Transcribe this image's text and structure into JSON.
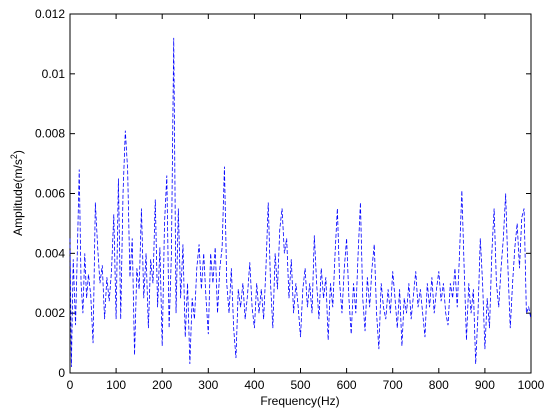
{
  "chart_data": {
    "type": "line",
    "xlabel": "Frequency(Hz)",
    "ylabel_parts": [
      "Amplitude(m/s",
      "2",
      ")"
    ],
    "xlim": [
      0,
      1000
    ],
    "xticks": [
      0,
      100,
      200,
      300,
      400,
      500,
      600,
      700,
      800,
      900,
      1000
    ],
    "ylim": [
      0,
      0.012
    ],
    "yticks": [
      0,
      0.002,
      0.004,
      0.006,
      0.008,
      0.01,
      0.012
    ],
    "grid": false,
    "series": [
      {
        "color": "#0000ff",
        "linestyle": "dashed",
        "x": [
          0,
          3,
          7,
          12,
          16,
          20,
          24,
          28,
          32,
          36,
          40,
          45,
          50,
          55,
          60,
          65,
          70,
          75,
          80,
          85,
          90,
          95,
          100,
          105,
          110,
          115,
          120,
          125,
          130,
          135,
          140,
          145,
          150,
          155,
          160,
          165,
          170,
          175,
          180,
          185,
          190,
          195,
          200,
          205,
          210,
          215,
          220,
          225,
          230,
          235,
          240,
          245,
          250,
          255,
          260,
          265,
          270,
          275,
          280,
          285,
          290,
          295,
          300,
          305,
          310,
          315,
          320,
          325,
          330,
          335,
          340,
          345,
          350,
          355,
          360,
          365,
          370,
          375,
          380,
          385,
          390,
          395,
          400,
          405,
          410,
          415,
          420,
          425,
          430,
          435,
          440,
          445,
          450,
          455,
          460,
          465,
          470,
          475,
          480,
          485,
          490,
          495,
          500,
          505,
          510,
          515,
          520,
          525,
          530,
          535,
          540,
          545,
          550,
          555,
          560,
          565,
          570,
          575,
          580,
          585,
          590,
          595,
          600,
          605,
          610,
          615,
          620,
          625,
          630,
          635,
          640,
          645,
          650,
          655,
          660,
          665,
          670,
          675,
          680,
          685,
          690,
          695,
          700,
          705,
          710,
          715,
          720,
          725,
          730,
          735,
          740,
          745,
          750,
          755,
          760,
          765,
          770,
          775,
          780,
          785,
          790,
          795,
          800,
          805,
          810,
          815,
          820,
          825,
          830,
          835,
          840,
          845,
          850,
          855,
          860,
          865,
          870,
          875,
          880,
          885,
          890,
          895,
          900,
          905,
          910,
          915,
          920,
          925,
          930,
          935,
          940,
          945,
          950,
          955,
          960,
          965,
          970,
          975,
          980,
          985,
          990,
          995,
          1000
        ],
        "values": [
          0.0045,
          0.0002,
          0.0038,
          0.0016,
          0.0041,
          0.0068,
          0.003,
          0.002,
          0.004,
          0.0025,
          0.0033,
          0.0026,
          0.001,
          0.0057,
          0.0042,
          0.003,
          0.0036,
          0.0018,
          0.0032,
          0.0024,
          0.0034,
          0.0053,
          0.0018,
          0.0065,
          0.0018,
          0.006,
          0.0081,
          0.0068,
          0.0032,
          0.0045,
          0.0006,
          0.0035,
          0.0028,
          0.0055,
          0.0025,
          0.004,
          0.0015,
          0.0038,
          0.003,
          0.0058,
          0.0022,
          0.0042,
          0.0009,
          0.005,
          0.0066,
          0.0015,
          0.004,
          0.0112,
          0.002,
          0.0055,
          0.0025,
          0.0043,
          0.0012,
          0.003,
          0.0003,
          0.0025,
          0.0018,
          0.0035,
          0.0043,
          0.0028,
          0.004,
          0.0025,
          0.0013,
          0.004,
          0.003,
          0.0042,
          0.002,
          0.0035,
          0.0042,
          0.0069,
          0.003,
          0.002,
          0.0035,
          0.0015,
          0.0005,
          0.0028,
          0.0022,
          0.003,
          0.0018,
          0.0026,
          0.0037,
          0.0022,
          0.0015,
          0.003,
          0.002,
          0.0028,
          0.0018,
          0.0035,
          0.0057,
          0.003,
          0.0015,
          0.004,
          0.0028,
          0.0048,
          0.0055,
          0.004,
          0.0045,
          0.0025,
          0.0038,
          0.002,
          0.003,
          0.0022,
          0.0012,
          0.0028,
          0.0035,
          0.0022,
          0.003,
          0.002,
          0.0046,
          0.003,
          0.0018,
          0.0035,
          0.0025,
          0.0032,
          0.0011,
          0.003,
          0.0022,
          0.004,
          0.0055,
          0.003,
          0.002,
          0.0035,
          0.0045,
          0.0025,
          0.0013,
          0.003,
          0.002,
          0.004,
          0.0057,
          0.0025,
          0.0014,
          0.0032,
          0.0022,
          0.0035,
          0.0043,
          0.002,
          0.0008,
          0.003,
          0.0022,
          0.0018,
          0.0028,
          0.002,
          0.0034,
          0.0025,
          0.0015,
          0.0028,
          0.0009,
          0.0025,
          0.002,
          0.003,
          0.0018,
          0.0026,
          0.0034,
          0.0022,
          0.0028,
          0.002,
          0.0012,
          0.003,
          0.0022,
          0.0032,
          0.002,
          0.0028,
          0.0034,
          0.0024,
          0.003,
          0.002,
          0.0016,
          0.003,
          0.0025,
          0.0035,
          0.0022,
          0.004,
          0.0061,
          0.0035,
          0.0011,
          0.003,
          0.002,
          0.0028,
          0.0003,
          0.002,
          0.0045,
          0.003,
          0.0008,
          0.0025,
          0.0015,
          0.004,
          0.0055,
          0.003,
          0.0022,
          0.0035,
          0.0045,
          0.006,
          0.0035,
          0.0015,
          0.003,
          0.0042,
          0.005,
          0.0035,
          0.0052,
          0.0055,
          0.002,
          0.0022,
          0.0018
        ]
      }
    ]
  }
}
